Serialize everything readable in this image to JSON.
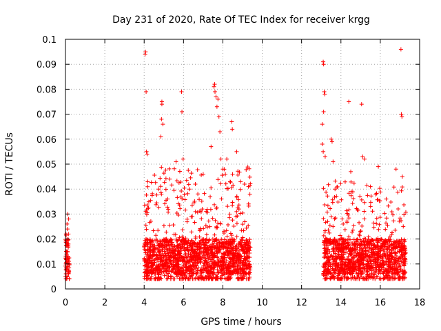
{
  "chart_data": {
    "type": "scatter",
    "title": "Day 231 of 2020, Rate Of TEC Index for receiver krgg",
    "xlabel": "GPS time / hours",
    "ylabel": "ROTI / TECUs",
    "xlim": [
      0,
      18
    ],
    "ylim": [
      0,
      0.1
    ],
    "x_ticks": [
      "0",
      "2",
      "4",
      "6",
      "8",
      "10",
      "12",
      "14",
      "16",
      "18"
    ],
    "y_ticks": [
      "0",
      "0.01",
      "0.02",
      "0.03",
      "0.04",
      "0.05",
      "0.06",
      "0.07",
      "0.08",
      "0.09",
      "0.1"
    ],
    "grid": true,
    "marker": "+",
    "colors": {
      "points": "#ff0000",
      "grid": "#a0a0a0",
      "axes": "#000000"
    },
    "series": [
      {
        "points": [
          [
            0.02,
            0.01
          ],
          [
            0.03,
            0.012
          ],
          [
            0.05,
            0.014
          ],
          [
            0.05,
            0.008
          ],
          [
            0.07,
            0.011
          ],
          [
            0.08,
            0.02
          ],
          [
            0.08,
            0.026
          ],
          [
            0.1,
            0.015
          ],
          [
            0.1,
            0.024
          ],
          [
            0.12,
            0.03
          ],
          [
            0.12,
            0.009
          ],
          [
            0.14,
            0.013
          ],
          [
            0.15,
            0.018
          ],
          [
            0.16,
            0.028
          ],
          [
            0.17,
            0.011
          ],
          [
            0.18,
            0.007
          ],
          [
            4.05,
            0.094
          ],
          [
            4.07,
            0.095
          ],
          [
            4.1,
            0.079
          ],
          [
            4.12,
            0.055
          ],
          [
            4.15,
            0.054
          ],
          [
            4.18,
            0.043
          ],
          [
            4.9,
            0.075
          ],
          [
            4.9,
            0.074
          ],
          [
            4.88,
            0.068
          ],
          [
            4.85,
            0.061
          ],
          [
            4.95,
            0.066
          ],
          [
            5.3,
            0.044
          ],
          [
            5.62,
            0.051
          ],
          [
            5.9,
            0.079
          ],
          [
            5.92,
            0.071
          ],
          [
            5.98,
            0.052
          ],
          [
            6.3,
            0.04
          ],
          [
            6.6,
            0.042
          ],
          [
            7.0,
            0.046
          ],
          [
            7.4,
            0.057
          ],
          [
            7.55,
            0.081
          ],
          [
            7.58,
            0.082
          ],
          [
            7.6,
            0.079
          ],
          [
            7.65,
            0.077
          ],
          [
            7.7,
            0.073
          ],
          [
            7.75,
            0.076
          ],
          [
            7.8,
            0.069
          ],
          [
            7.85,
            0.063
          ],
          [
            7.9,
            0.052
          ],
          [
            8.0,
            0.048
          ],
          [
            8.2,
            0.052
          ],
          [
            8.45,
            0.067
          ],
          [
            8.48,
            0.064
          ],
          [
            8.7,
            0.055
          ],
          [
            8.9,
            0.043
          ],
          [
            9.1,
            0.042
          ],
          [
            9.3,
            0.041
          ],
          [
            13.1,
            0.091
          ],
          [
            13.12,
            0.09
          ],
          [
            13.05,
            0.066
          ],
          [
            13.15,
            0.079
          ],
          [
            13.18,
            0.078
          ],
          [
            13.12,
            0.071
          ],
          [
            13.05,
            0.058
          ],
          [
            13.1,
            0.055
          ],
          [
            13.2,
            0.053
          ],
          [
            13.5,
            0.06
          ],
          [
            13.55,
            0.059
          ],
          [
            13.6,
            0.051
          ],
          [
            13.7,
            0.04
          ],
          [
            14.4,
            0.075
          ],
          [
            14.5,
            0.047
          ],
          [
            15.05,
            0.074
          ],
          [
            15.1,
            0.053
          ],
          [
            15.2,
            0.052
          ],
          [
            15.5,
            0.041
          ],
          [
            15.9,
            0.049
          ],
          [
            16.3,
            0.036
          ],
          [
            16.8,
            0.048
          ],
          [
            17.05,
            0.096
          ],
          [
            17.07,
            0.07
          ],
          [
            17.1,
            0.069
          ],
          [
            17.12,
            0.045
          ]
        ]
      }
    ]
  }
}
